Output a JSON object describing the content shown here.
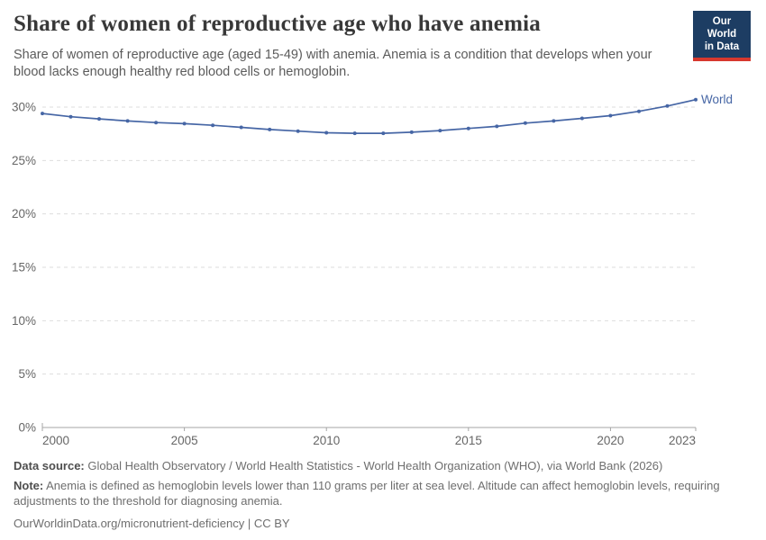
{
  "header": {
    "title": "Share of women of reproductive age who have anemia",
    "subtitle": "Share of women of reproductive age (aged 15-49) with anemia. Anemia is a condition that develops when your blood lacks enough healthy red blood cells or hemoglobin.",
    "logo": {
      "line1": "Our World",
      "line2": "in Data",
      "bg_color": "#1d3d63",
      "stripe_color": "#d7382e"
    }
  },
  "chart_data": {
    "type": "line",
    "title": "Share of women of reproductive age who have anemia",
    "xlabel": "",
    "ylabel": "",
    "x": [
      2000,
      2001,
      2002,
      2003,
      2004,
      2005,
      2006,
      2007,
      2008,
      2009,
      2010,
      2011,
      2012,
      2013,
      2014,
      2015,
      2016,
      2017,
      2018,
      2019,
      2020,
      2021,
      2022,
      2023
    ],
    "series": [
      {
        "name": "World",
        "color": "#4666a5",
        "values": [
          29.4,
          29.1,
          28.9,
          28.7,
          28.55,
          28.45,
          28.3,
          28.1,
          27.9,
          27.75,
          27.6,
          27.55,
          27.55,
          27.65,
          27.8,
          28.0,
          28.2,
          28.5,
          28.7,
          28.95,
          29.2,
          29.6,
          30.1,
          30.7
        ]
      }
    ],
    "ylim": [
      0,
      30
    ],
    "yticks": [
      {
        "v": 0,
        "label": "0%"
      },
      {
        "v": 5,
        "label": "5%"
      },
      {
        "v": 10,
        "label": "10%"
      },
      {
        "v": 15,
        "label": "15%"
      },
      {
        "v": 20,
        "label": "20%"
      },
      {
        "v": 25,
        "label": "25%"
      },
      {
        "v": 30,
        "label": "30%"
      }
    ],
    "xticks": [
      {
        "v": 2000,
        "label": "2000",
        "anchor": "start"
      },
      {
        "v": 2005,
        "label": "2005",
        "anchor": "middle"
      },
      {
        "v": 2010,
        "label": "2010",
        "anchor": "middle"
      },
      {
        "v": 2015,
        "label": "2015",
        "anchor": "middle"
      },
      {
        "v": 2020,
        "label": "2020",
        "anchor": "middle"
      },
      {
        "v": 2023,
        "label": "2023",
        "anchor": "end"
      }
    ],
    "grid": "horizontal-dashed",
    "legend_position": "end-of-line-label",
    "colors": {
      "grid": "#dddddd",
      "axis": "#a5a5a5",
      "tick_text": "#666666"
    }
  },
  "footer": {
    "source_label": "Data source:",
    "source_text": "Global Health Observatory / World Health Statistics - World Health Organization (WHO), via World Bank (2026)",
    "note_label": "Note:",
    "note_text": "Anemia is defined as hemoglobin levels lower than 110 grams per liter at sea level. Altitude can affect hemoglobin levels, requiring adjustments to the threshold for diagnosing anemia.",
    "citation": "OurWorldinData.org/micronutrient-deficiency | CC BY"
  }
}
